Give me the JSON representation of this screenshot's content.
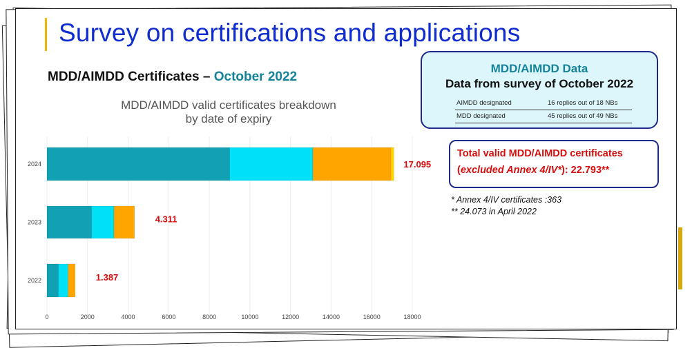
{
  "slide": {
    "title": "Survey on certifications and applications",
    "subtitle_prefix": "MDD/AIMDD Certificates – ",
    "subtitle_accent": "October 2022",
    "chart_title_1": "MDD/AIMDD valid certificates breakdown",
    "chart_title_2": "by date of expiry"
  },
  "info_box": {
    "heading": "MDD/AIMDD Data",
    "subheading": "Data from survey of October 2022",
    "rows": [
      {
        "label": "AIMDD designated",
        "value": "16 replies out of 18 NBs"
      },
      {
        "label": "MDD designated",
        "value": "45 replies out of 49 NBs"
      }
    ]
  },
  "total_box": {
    "line1": "Total valid MDD/AIMDD certificates",
    "line2_open": "(",
    "line2_italic": "excluded Annex 4/IV*",
    "line2_rest": "): 22.793**"
  },
  "notes": [
    "* Annex 4/IV certificates :363",
    "** 24.073 in April 2022"
  ],
  "colors": {
    "title": "#0f2ccf",
    "accent": "#14839a",
    "total_red": "#d40d0d",
    "segment_1": "#12a0b4",
    "segment_2": "#00e1f7",
    "segment_3": "#ffa500",
    "segment_4": "#ffd700"
  },
  "chart_data": {
    "type": "bar",
    "orientation": "horizontal",
    "stacked": true,
    "categories": [
      "2024",
      "2023",
      "2022"
    ],
    "segments": [
      [
        9000,
        4100,
        3850,
        145
      ],
      [
        2200,
        1100,
        1011,
        0
      ],
      [
        560,
        480,
        347,
        0
      ]
    ],
    "totals_labels": [
      "17.095",
      "4.311",
      "1.387"
    ],
    "x_ticks": [
      0,
      2000,
      4000,
      6000,
      8000,
      10000,
      12000,
      14000,
      16000,
      18000
    ],
    "xlim": [
      0,
      18000
    ],
    "grid": true
  }
}
